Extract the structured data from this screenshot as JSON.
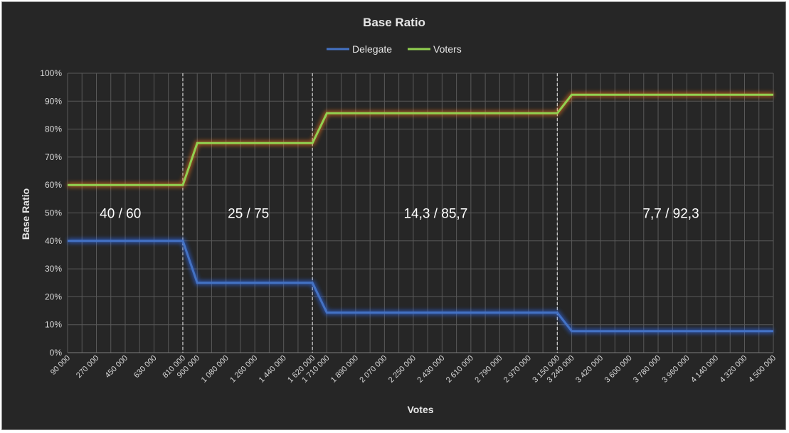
{
  "chart_data": {
    "type": "line",
    "title": "Base Ratio",
    "xlabel": "Votes",
    "ylabel": "Base Ratio",
    "ylim": [
      0,
      100
    ],
    "yticks": [
      "0%",
      "10%",
      "20%",
      "30%",
      "40%",
      "50%",
      "60%",
      "70%",
      "80%",
      "90%",
      "100%"
    ],
    "x_tick_labels": [
      "90 000",
      "270 000",
      "450 000",
      "630 000",
      "810 000",
      "900 000",
      "1 080 000",
      "1 260 000",
      "1 440 000",
      "1 620 000",
      "1 710 000",
      "1 890 000",
      "2 070 000",
      "2 250 000",
      "2 430 000",
      "2 610 000",
      "2 790 000",
      "2 970 000",
      "3 150 000",
      "3 240 000",
      "3 420 000",
      "3 600 000",
      "3 780 000",
      "3 960 000",
      "4 140 000",
      "4 320 000",
      "4 500 000"
    ],
    "x_range": [
      90000,
      4500000
    ],
    "grid": true,
    "legend_position": "top-center",
    "series": [
      {
        "name": "Delegate",
        "color": "#4472c4",
        "points": [
          [
            90000,
            40
          ],
          [
            810000,
            40
          ],
          [
            900000,
            25
          ],
          [
            1620000,
            25
          ],
          [
            1710000,
            14.3
          ],
          [
            3150000,
            14.3
          ],
          [
            3240000,
            7.7
          ],
          [
            4500000,
            7.7
          ]
        ]
      },
      {
        "name": "Voters",
        "color": "#92d050",
        "points": [
          [
            90000,
            60
          ],
          [
            810000,
            60
          ],
          [
            900000,
            75
          ],
          [
            1620000,
            75
          ],
          [
            1710000,
            85.7
          ],
          [
            3150000,
            85.7
          ],
          [
            3240000,
            92.3
          ],
          [
            4500000,
            92.3
          ]
        ]
      }
    ],
    "threshold_lines": [
      810000,
      1620000,
      3150000
    ],
    "annotations": [
      {
        "text": "40 / 60",
        "x": 420000,
        "y": 50
      },
      {
        "text": "25 / 75",
        "x": 1220000,
        "y": 50
      },
      {
        "text": "14,3 / 85,7",
        "x": 2390000,
        "y": 50
      },
      {
        "text": "7,7 / 92,3",
        "x": 3860000,
        "y": 50
      }
    ]
  }
}
